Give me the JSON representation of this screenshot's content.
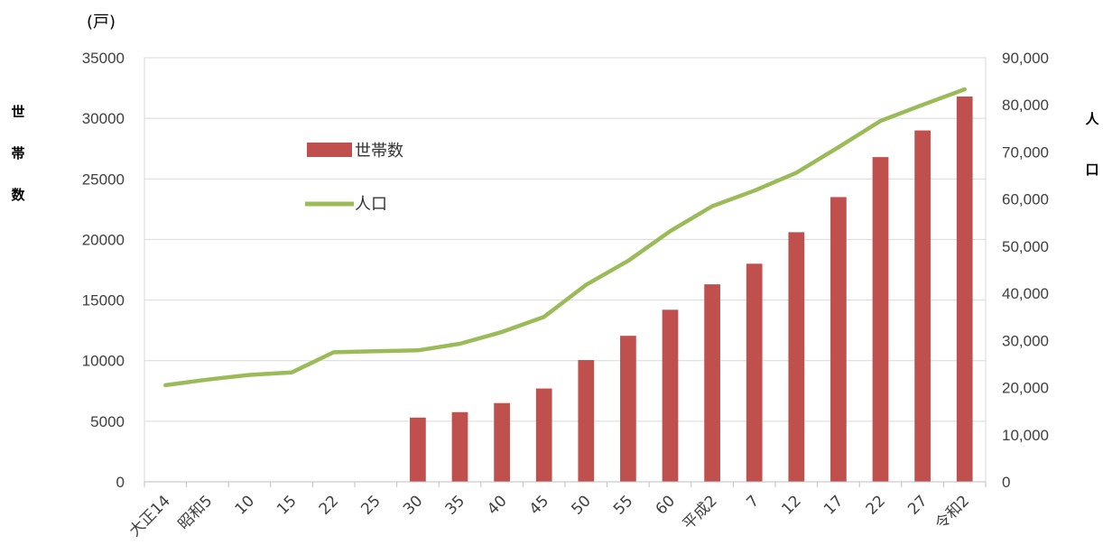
{
  "chart_data": {
    "type": "bar+line",
    "unit_label": "(戸)",
    "y_left_label": [
      "世",
      "帯",
      "数"
    ],
    "y_right_label": [
      "人",
      "口"
    ],
    "categories": [
      "大正14",
      "昭和5",
      "10",
      "15",
      "22",
      "25",
      "30",
      "35",
      "40",
      "45",
      "50",
      "55",
      "60",
      "平成2",
      "7",
      "12",
      "17",
      "22",
      "27",
      "令和2"
    ],
    "left_axis": {
      "min": 0,
      "max": 35000,
      "step": 5000,
      "ticks": [
        "0",
        "5000",
        "10000",
        "15000",
        "20000",
        "25000",
        "30000",
        "35000"
      ]
    },
    "right_axis": {
      "min": 0,
      "max": 90000,
      "step": 10000,
      "ticks": [
        "0",
        "10,000",
        "20,000",
        "30,000",
        "40,000",
        "50,000",
        "60,000",
        "70,000",
        "80,000",
        "90,000"
      ]
    },
    "series": [
      {
        "name": "世帯数",
        "type": "bar",
        "axis": "left",
        "color": "#c0504d",
        "values": [
          null,
          null,
          null,
          null,
          null,
          null,
          5300,
          5750,
          6500,
          7700,
          10050,
          12050,
          14200,
          16300,
          18000,
          20600,
          23500,
          26800,
          29000,
          31800
        ]
      },
      {
        "name": "人口",
        "type": "line",
        "axis": "right",
        "color": "#9bbb59",
        "values": [
          20500,
          21700,
          22700,
          23200,
          27500,
          27700,
          27900,
          29300,
          31800,
          35000,
          41800,
          46900,
          53200,
          58500,
          61800,
          65600,
          71000,
          76600,
          80000,
          83300
        ]
      }
    ],
    "grid": true,
    "legend": "upper-left inside plot"
  }
}
